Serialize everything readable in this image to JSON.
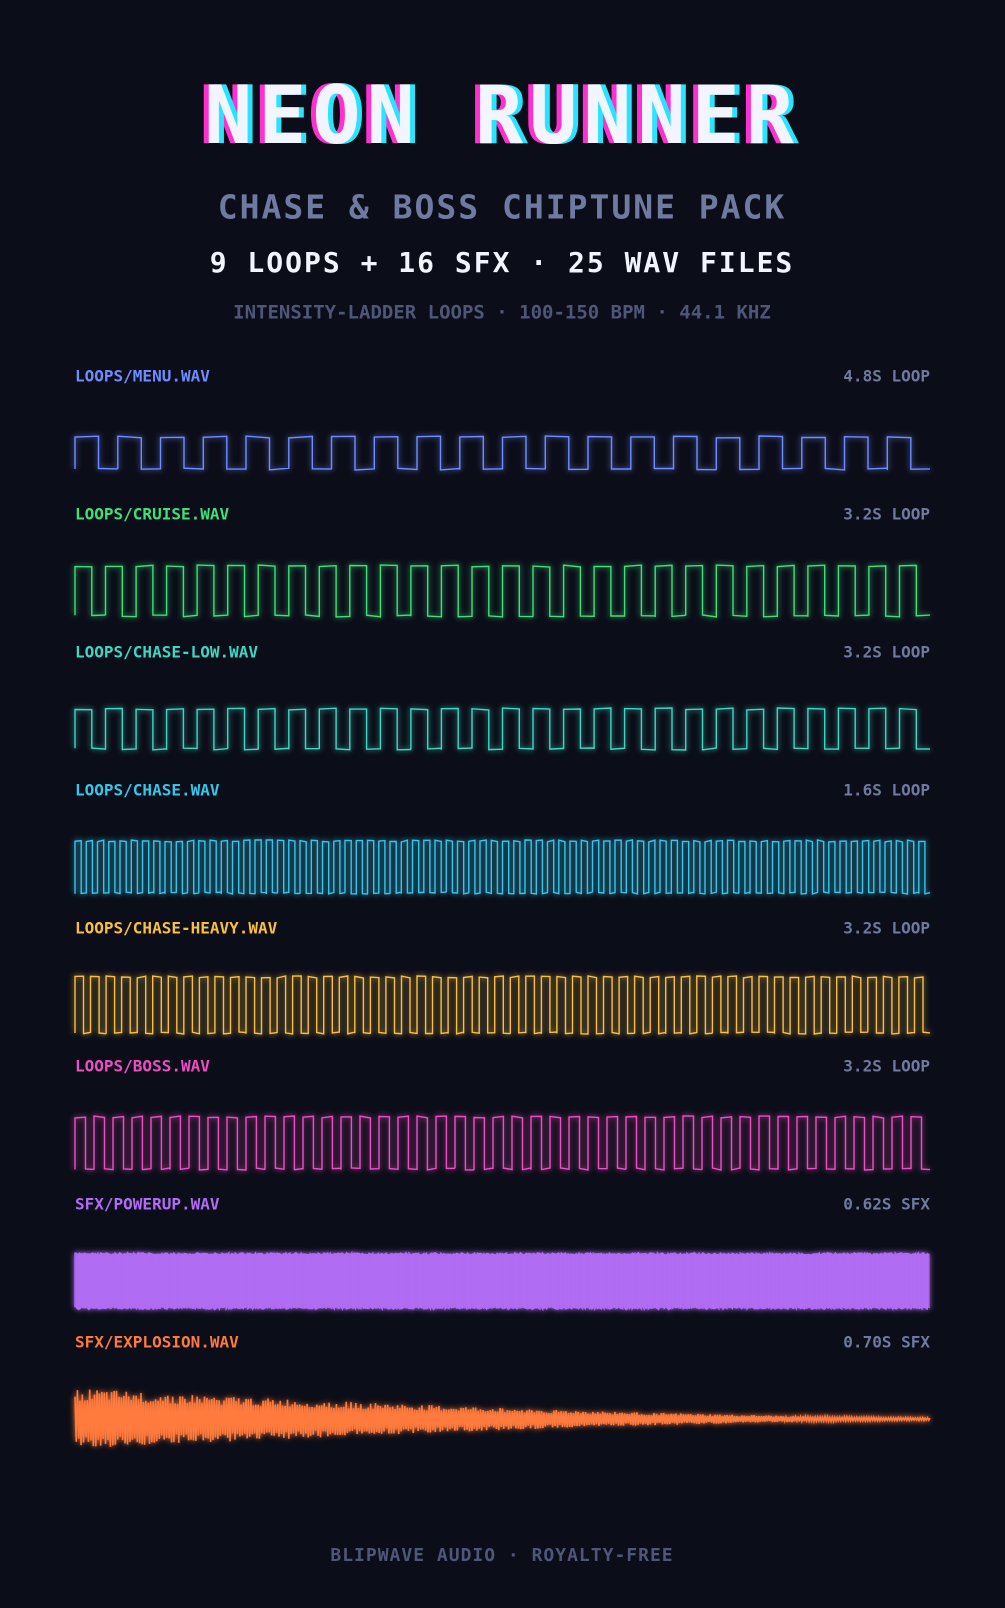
{
  "header": {
    "title": "NEON RUNNER",
    "subtitle": "CHASE & BOSS CHIPTUNE PACK",
    "summary": "9 LOOPS + 16 SFX · 25 WAV FILES",
    "specs": "INTENSITY-LADDER LOOPS · 100-150 BPM · 44.1 KHZ"
  },
  "tracks": [
    {
      "file": "LOOPS/MENU.WAV",
      "duration": "4.8S LOOP",
      "color": "#6f8cff"
    },
    {
      "file": "LOOPS/CRUISE.WAV",
      "duration": "3.2S LOOP",
      "color": "#3ee07a"
    },
    {
      "file": "LOOPS/CHASE-LOW.WAV",
      "duration": "3.2S LOOP",
      "color": "#3fd6c4"
    },
    {
      "file": "LOOPS/CHASE.WAV",
      "duration": "1.6S LOOP",
      "color": "#35c6ea"
    },
    {
      "file": "LOOPS/CHASE-HEAVY.WAV",
      "duration": "3.2S LOOP",
      "color": "#f7c040"
    },
    {
      "file": "LOOPS/BOSS.WAV",
      "duration": "3.2S LOOP",
      "color": "#ee4ec4"
    },
    {
      "file": "SFX/POWERUP.WAV",
      "duration": "0.62S SFX",
      "color": "#b06cf2"
    },
    {
      "file": "SFX/EXPLOSION.WAV",
      "duration": "0.70S SFX",
      "color": "#ff7a3c"
    }
  ],
  "footer": "BLIPWAVE AUDIO · ROYALTY-FREE"
}
